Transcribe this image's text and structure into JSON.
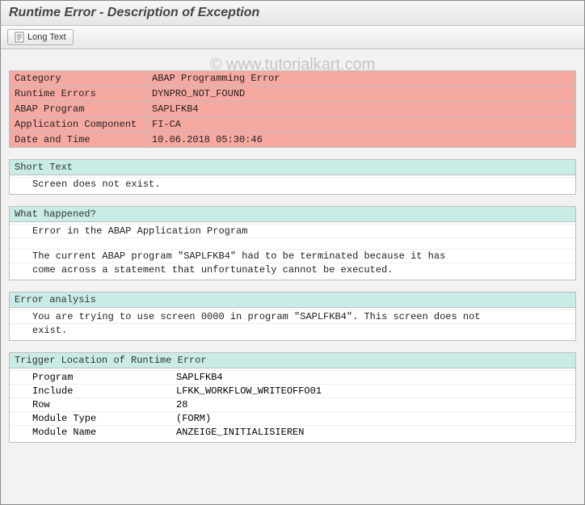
{
  "title": "Runtime Error - Description of Exception",
  "toolbar": {
    "long_text_label": "Long Text"
  },
  "watermark": "© www.tutorialkart.com",
  "colors": {
    "info_row_bg": "#f6a9a1",
    "section_header_bg": "#c9ece7",
    "page_bg": "#f2f2f2",
    "border": "#bfbfbf"
  },
  "info_rows": [
    {
      "label": "Category",
      "value": "ABAP Programming Error"
    },
    {
      "label": "Runtime Errors",
      "value": "DYNPRO_NOT_FOUND"
    },
    {
      "label": "ABAP Program",
      "value": "SAPLFKB4"
    },
    {
      "label": "Application Component",
      "value": "FI-CA"
    },
    {
      "label": "Date and Time",
      "value": "10.06.2018 05:30:46"
    }
  ],
  "sections": {
    "short_text": {
      "header": "Short Text",
      "lines": [
        "Screen does not exist."
      ]
    },
    "what_happened": {
      "header": "What happened?",
      "lines": [
        "Error in the ABAP Application Program",
        "",
        "The current ABAP program \"SAPLFKB4\" had to be terminated because it has",
        "come across a statement that unfortunately cannot be executed."
      ]
    },
    "error_analysis": {
      "header": "Error analysis",
      "lines": [
        "You are trying to use screen 0000 in program \"SAPLFKB4\". This screen does not",
        "exist."
      ]
    },
    "trigger_location": {
      "header": "Trigger Location of Runtime Error",
      "rows": [
        {
          "k": "Program",
          "v": "SAPLFKB4"
        },
        {
          "k": "Include",
          "v": "LFKK_WORKFLOW_WRITEOFFO01"
        },
        {
          "k": "Row",
          "v": "28"
        },
        {
          "k": "Module Type",
          "v": "(FORM)"
        },
        {
          "k": "Module Name",
          "v": "ANZEIGE_INITIALISIEREN"
        }
      ]
    }
  }
}
